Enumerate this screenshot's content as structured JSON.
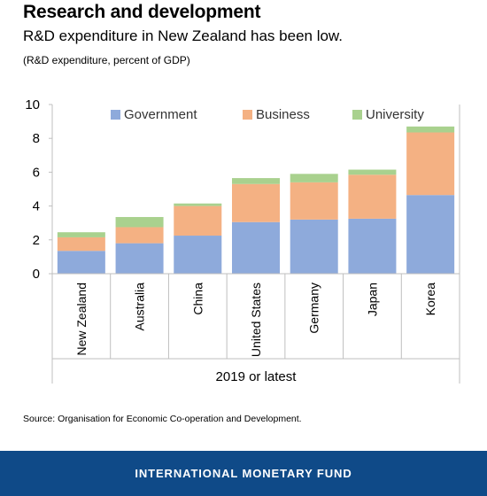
{
  "header": {
    "title": "Research and development",
    "subtitle": "R&D expenditure in New Zealand has been low.",
    "note": "(R&D expenditure, percent of GDP)"
  },
  "chart_data": {
    "type": "bar",
    "stacked": true,
    "categories": [
      "New Zealand",
      "Australia",
      "China",
      "United States",
      "Germany",
      "Japan",
      "Korea"
    ],
    "series": [
      {
        "name": "Government",
        "color": "#8eaadb",
        "values": [
          1.35,
          1.8,
          2.25,
          3.05,
          3.2,
          3.25,
          4.65
        ]
      },
      {
        "name": "Business",
        "color": "#f4b183",
        "values": [
          0.8,
          0.95,
          1.75,
          2.25,
          2.2,
          2.6,
          3.7
        ]
      },
      {
        "name": "University",
        "color": "#a9d18e",
        "values": [
          0.3,
          0.6,
          0.15,
          0.35,
          0.5,
          0.3,
          0.35
        ]
      }
    ],
    "ylim": [
      0,
      10
    ],
    "yticks": [
      0,
      2,
      4,
      6,
      8,
      10
    ],
    "xlabel": "2019 or latest",
    "ylabel": "",
    "legend_position": "top",
    "grid": false
  },
  "source": "Source: Organisation for Economic Co-operation and Development.",
  "footer": {
    "text": "INTERNATIONAL MONETARY FUND",
    "color": "#0f4a88"
  }
}
